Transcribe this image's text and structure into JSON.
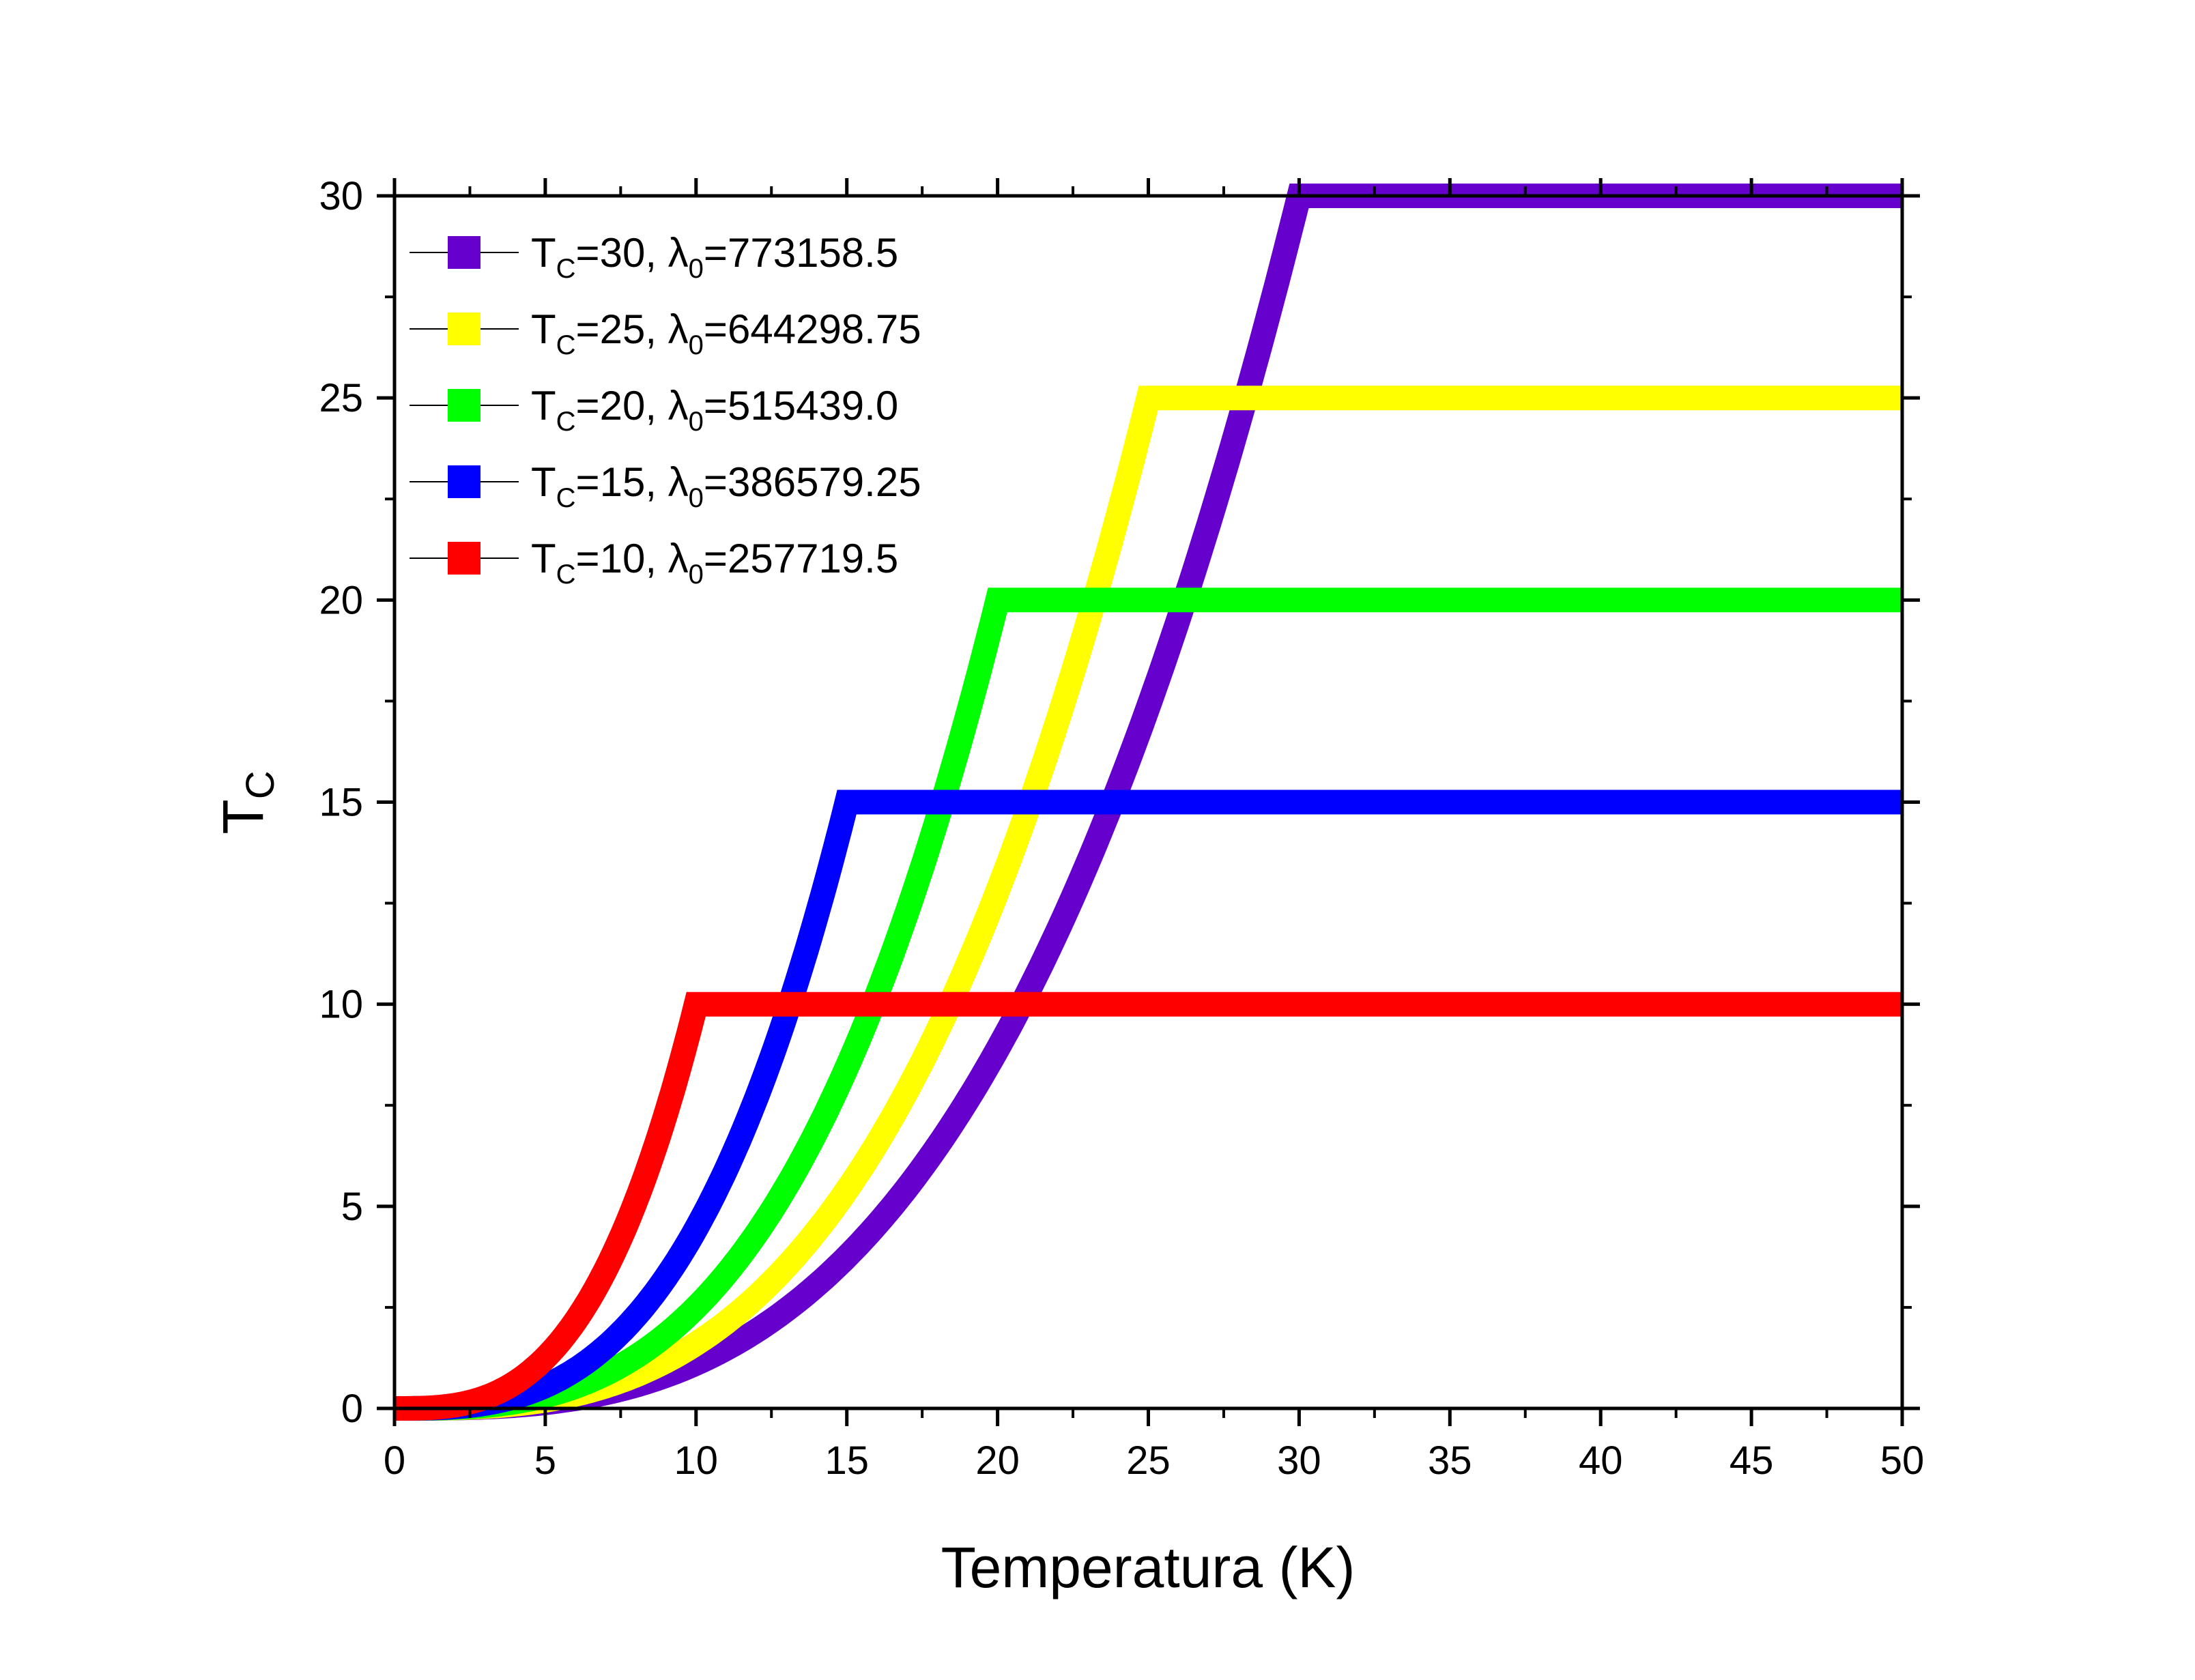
{
  "chart_data": {
    "type": "line",
    "xlabel": "Temperatura (K)",
    "ylabel": {
      "main": "T",
      "sub": "C"
    },
    "xlim": [
      0,
      50
    ],
    "ylim": [
      0,
      30
    ],
    "x_ticks": [
      0,
      5,
      10,
      15,
      20,
      25,
      30,
      35,
      40,
      45,
      50
    ],
    "y_ticks": [
      0,
      5,
      10,
      15,
      20,
      25,
      30
    ],
    "x_tick_labels": [
      "0",
      "5",
      "10",
      "15",
      "20",
      "25",
      "30",
      "35",
      "40",
      "45",
      "50"
    ],
    "y_tick_labels": [
      "0",
      "5",
      "10",
      "15",
      "20",
      "25",
      "30"
    ],
    "grid": false,
    "legend_position": "top-left",
    "series": [
      {
        "name": "TC=30, λ0=773158.5",
        "label": {
          "a": "T",
          "a_sub": "C",
          "b": "=30, ",
          "c": "λ",
          "c_sub": "0",
          "d": "=773158.5"
        },
        "Tc": 30,
        "color": "#6600CC",
        "x": [
          0,
          5,
          10,
          15,
          20,
          25,
          30,
          40,
          50
        ],
        "y": [
          0.0,
          0.1,
          0.6,
          2.5,
          7.2,
          17.2,
          30,
          30,
          30
        ]
      },
      {
        "name": "TC=25, λ0=644298.75",
        "label": {
          "a": "T",
          "a_sub": "C",
          "b": "=25, ",
          "c": "λ",
          "c_sub": "0",
          "d": "=644298.75"
        },
        "Tc": 25,
        "color": "#FFFF00",
        "x": [
          0,
          5,
          10,
          15,
          20,
          25,
          40,
          50
        ],
        "y": [
          0.0,
          0.2,
          1.2,
          4.8,
          13.0,
          25,
          25,
          25
        ]
      },
      {
        "name": "TC=20, λ0=515439.0",
        "label": {
          "a": "T",
          "a_sub": "C",
          "b": "=20, ",
          "c": "λ",
          "c_sub": "0",
          "d": "=515439.0"
        },
        "Tc": 20,
        "color": "#00FF00",
        "x": [
          0,
          5,
          10,
          15,
          20,
          40,
          50
        ],
        "y": [
          0.0,
          0.3,
          2.4,
          8.7,
          20,
          20,
          20
        ]
      },
      {
        "name": "TC=15, λ0=386579.25",
        "label": {
          "a": "T",
          "a_sub": "C",
          "b": "=15, ",
          "c": "λ",
          "c_sub": "0",
          "d": "=386579.25"
        },
        "Tc": 15,
        "color": "#0000FF",
        "x": [
          0,
          5,
          10,
          15,
          40,
          50
        ],
        "y": [
          0.0,
          0.6,
          4.7,
          15,
          15,
          15
        ]
      },
      {
        "name": "TC=10, λ0=257719.5",
        "label": {
          "a": "T",
          "a_sub": "C",
          "b": "=10, ",
          "c": "λ",
          "c_sub": "0",
          "d": "=257719.5"
        },
        "Tc": 10,
        "color": "#FF0000",
        "x": [
          0,
          2.5,
          5,
          7.5,
          10,
          40,
          50
        ],
        "y": [
          0.0,
          0.1,
          1.2,
          4.4,
          10,
          10,
          10
        ]
      }
    ]
  }
}
